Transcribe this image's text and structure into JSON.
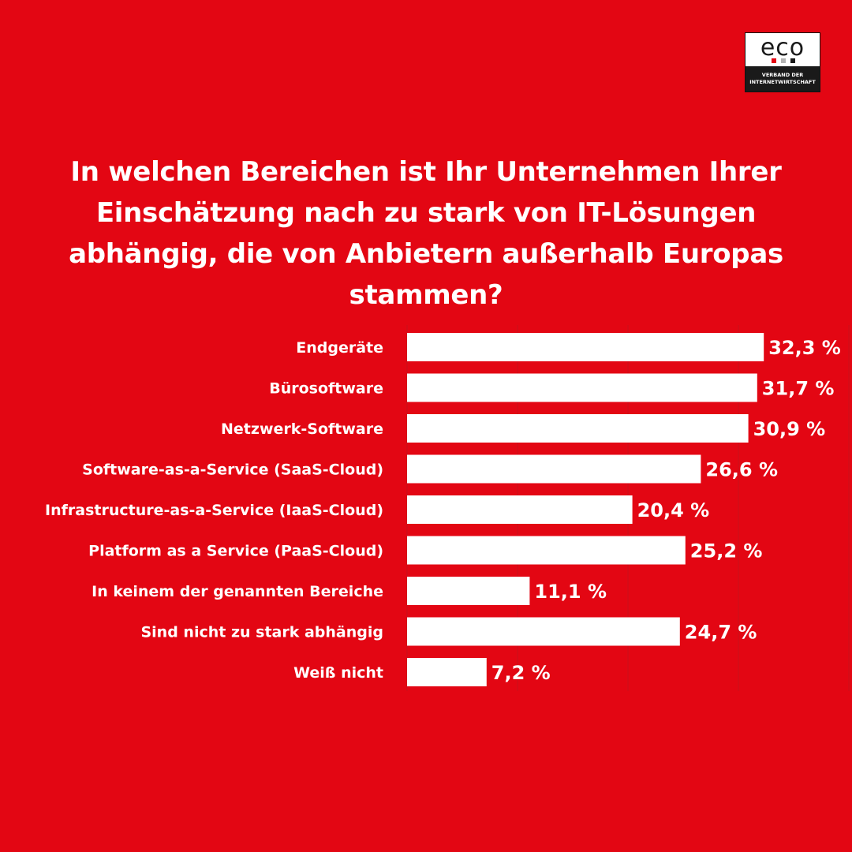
{
  "logo": {
    "word": "eco",
    "tagline_line1": "VERBAND DER",
    "tagline_line2": "INTERNETWIRTSCHAFT",
    "dot_colors": [
      "#e30613",
      "#b3b3b3",
      "#1a1a1a"
    ]
  },
  "colors": {
    "background": "#e30613",
    "bar": "#ffffff",
    "text": "#ffffff",
    "grid": "#c8101b"
  },
  "chart_data": {
    "type": "bar",
    "orientation": "horizontal",
    "title": "In welchen Bereichen ist Ihr Unternehmen Ihrer Einschätzung nach zu stark von IT-Lösungen abhängig, die von Anbietern außerhalb Europas stammen?",
    "categories": [
      "Endgeräte",
      "Bürosoftware",
      "Netzwerk-Software",
      "Software-as-a-Service (SaaS-Cloud)",
      "Infrastructure-as-a-Service (IaaS-Cloud)",
      "Platform as a Service (PaaS-Cloud)",
      "In keinem der genannten Bereiche",
      "Sind nicht zu stark abhängig",
      "Weiß nicht"
    ],
    "values": [
      32.3,
      31.7,
      30.9,
      26.6,
      20.4,
      25.2,
      11.1,
      24.7,
      7.2
    ],
    "value_labels": [
      "32,3 %",
      "31,7 %",
      "30,9 %",
      "26,6 %",
      "20,4 %",
      "25,2 %",
      "11,1 %",
      "24,7 %",
      "7,2 %"
    ],
    "unit": "%",
    "xlim": [
      0,
      40
    ],
    "grid": true,
    "gridlines_at": [
      10,
      20,
      30,
      40
    ],
    "legend": "none"
  }
}
